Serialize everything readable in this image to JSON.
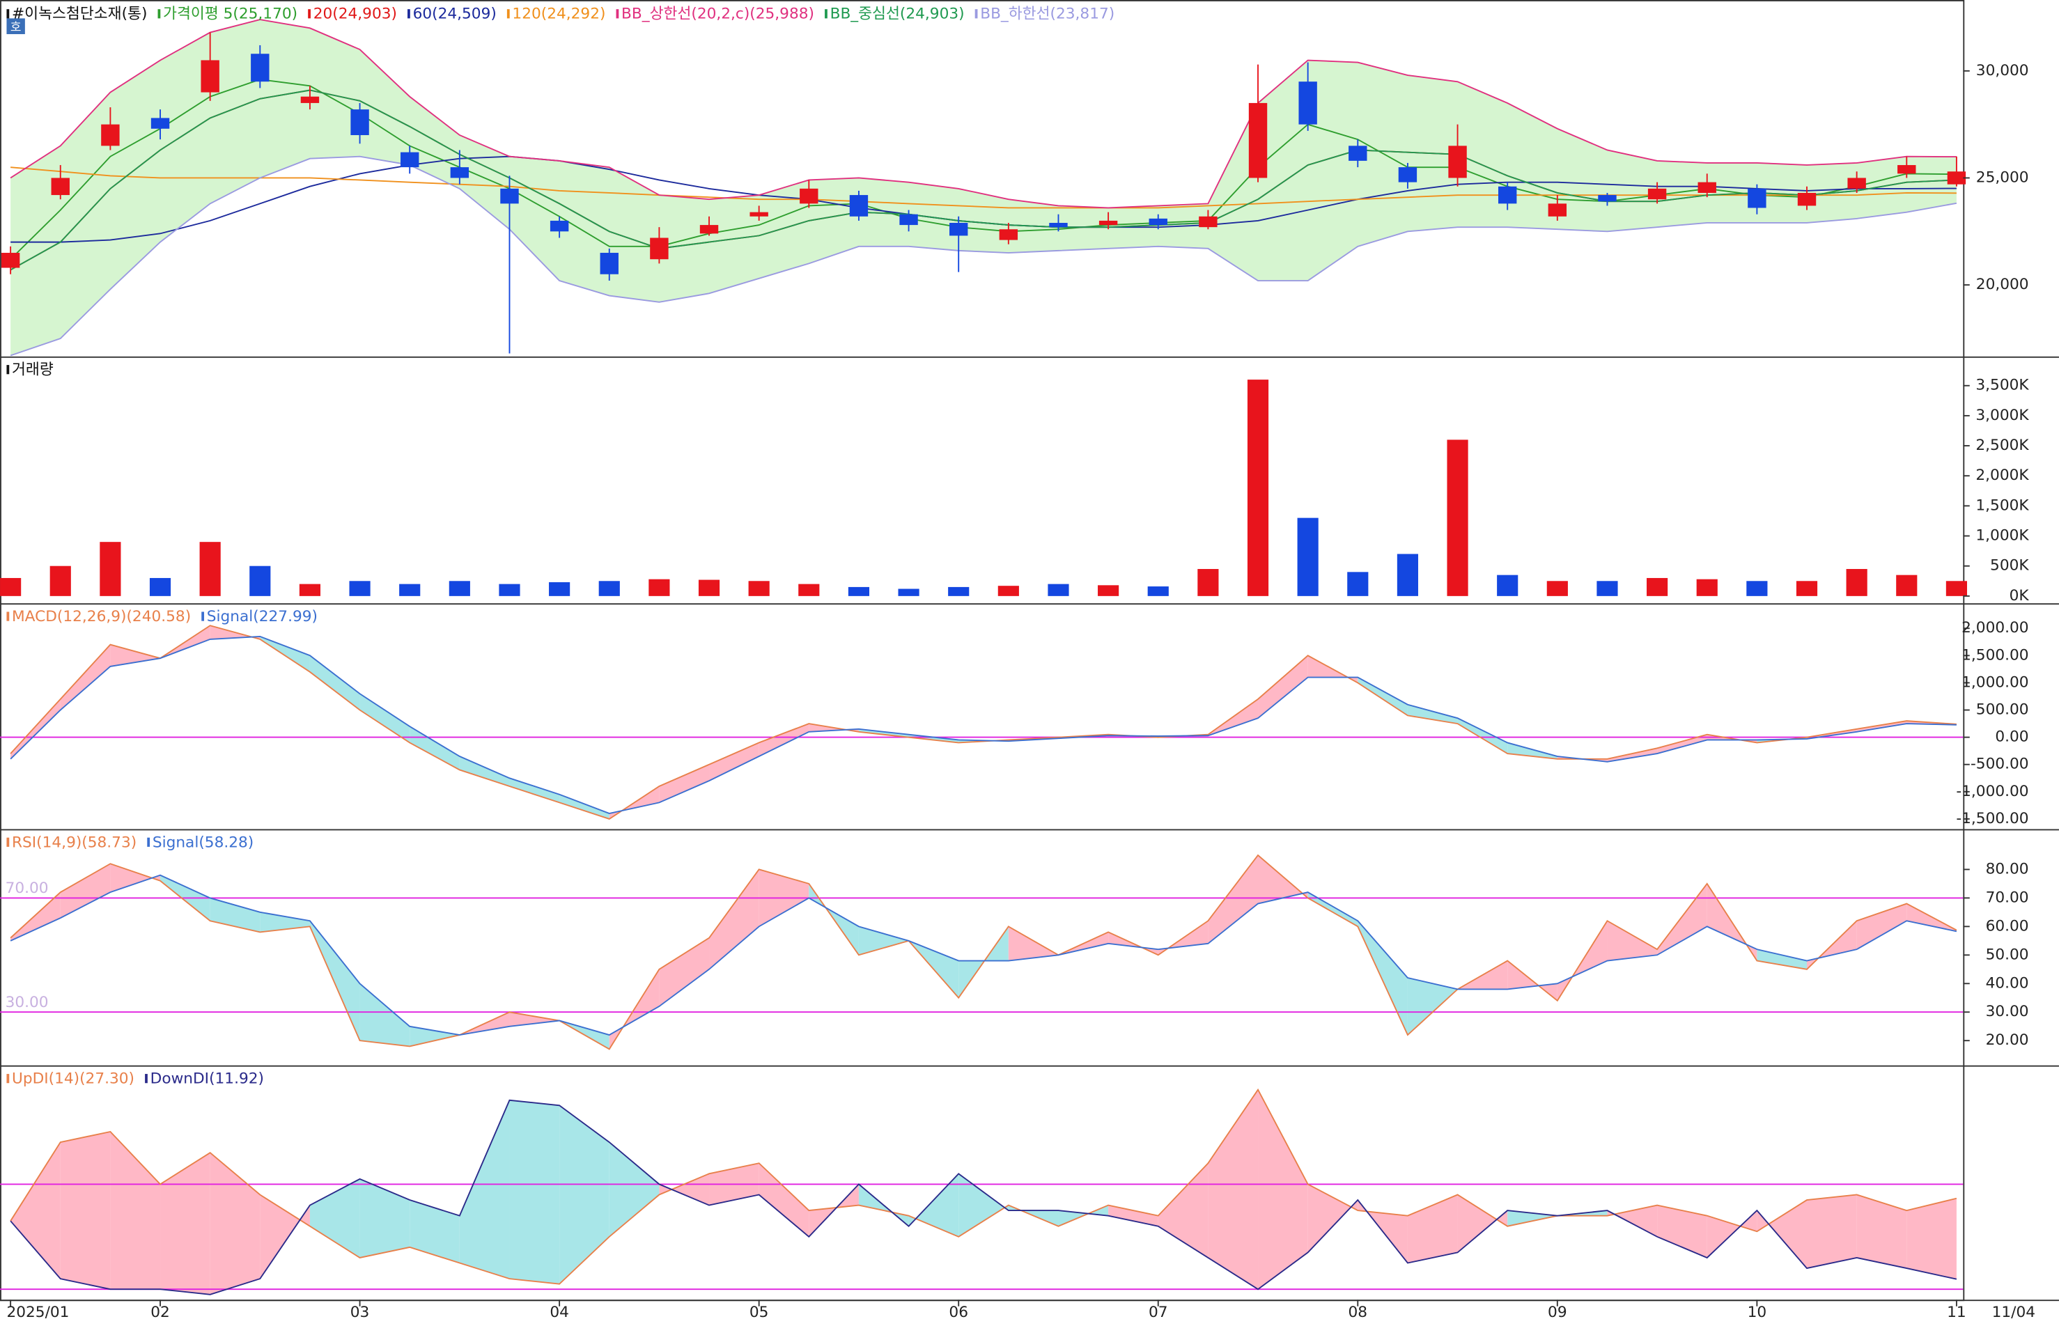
{
  "chart_data": [
    {
      "type": "candlestick",
      "title": "#이녹스첨단소재(통)",
      "badge": "호",
      "last_date": "11/04",
      "categories": [
        "2025/01",
        null,
        null,
        "02",
        null,
        null,
        null,
        "03",
        null,
        null,
        null,
        "04",
        null,
        null,
        null,
        "05",
        null,
        null,
        null,
        "06",
        null,
        null,
        null,
        "07",
        null,
        null,
        null,
        "08",
        null,
        null,
        null,
        "09",
        null,
        null,
        null,
        "10",
        null,
        null,
        null,
        "11"
      ],
      "up_color": "#e8141c",
      "down_color": "#1447e0",
      "open": [
        20800,
        24200,
        26500,
        27800,
        29000,
        30800,
        28500,
        28200,
        26200,
        25500,
        24500,
        23000,
        21500,
        21200,
        22400,
        23200,
        23800,
        24200,
        23300,
        22900,
        22100,
        22900,
        22800,
        23100,
        22700,
        25000,
        29500,
        26500,
        25500,
        25000,
        24600,
        23200,
        24200,
        24000,
        24300,
        24500,
        23700,
        24500,
        25200,
        24700
      ],
      "high": [
        21800,
        25600,
        28300,
        28200,
        31800,
        31200,
        29300,
        28500,
        26500,
        26300,
        25100,
        23200,
        21700,
        22700,
        23200,
        23700,
        24900,
        24400,
        23500,
        23200,
        22900,
        23300,
        23400,
        23300,
        23500,
        30300,
        30400,
        26800,
        25700,
        27500,
        24800,
        24200,
        24300,
        24800,
        25200,
        24700,
        24600,
        25300,
        26000,
        26000
      ],
      "low": [
        20500,
        24000,
        26300,
        26800,
        28600,
        29200,
        28200,
        26600,
        25200,
        24700,
        16800,
        22200,
        20200,
        21000,
        22300,
        23000,
        23600,
        23000,
        22500,
        20600,
        21900,
        22500,
        22600,
        22600,
        22600,
        24800,
        27200,
        25500,
        24500,
        24600,
        23500,
        23000,
        23700,
        23800,
        24100,
        23300,
        23500,
        24300,
        25000,
        24600
      ],
      "close": [
        21500,
        25000,
        27500,
        27300,
        30500,
        29500,
        28800,
        27000,
        25500,
        25000,
        23800,
        22500,
        20500,
        22200,
        22800,
        23400,
        24500,
        23200,
        22800,
        22300,
        22600,
        22700,
        23000,
        22800,
        23200,
        28500,
        27500,
        25800,
        24800,
        26500,
        23800,
        23800,
        23900,
        24500,
        24800,
        23600,
        24300,
        25000,
        25600,
        25300
      ],
      "series": [
        {
          "name": "가격이평 5(25,170)",
          "color": "#2e9e2e",
          "values": [
            21200,
            23500,
            26000,
            27300,
            28800,
            29600,
            29300,
            28000,
            26500,
            25500,
            24500,
            23200,
            21800,
            21800,
            22400,
            22800,
            23700,
            23800,
            23100,
            22700,
            22500,
            22600,
            22800,
            22900,
            23000,
            25500,
            27500,
            26800,
            25500,
            25500,
            24600,
            24000,
            23900,
            24200,
            24500,
            24200,
            24100,
            24600,
            25200,
            25170
          ]
        },
        {
          "name": "20(24,903)",
          "color": "#e01818",
          "values": [
            20700,
            22000,
            24500,
            26300,
            27800,
            28700,
            29100,
            28600,
            27400,
            26100,
            25000,
            23800,
            22500,
            21700,
            22000,
            22300,
            23000,
            23400,
            23300,
            23000,
            22800,
            22700,
            22700,
            22800,
            22900,
            24000,
            25600,
            26300,
            26200,
            26100,
            25100,
            24300,
            23900,
            23900,
            24200,
            24300,
            24200,
            24400,
            24800,
            24903
          ]
        },
        {
          "name": "60(24,509)",
          "color": "#1c2a9c",
          "values": [
            22000,
            22000,
            22100,
            22400,
            23000,
            23800,
            24600,
            25200,
            25600,
            25900,
            26000,
            25800,
            25400,
            24900,
            24500,
            24200,
            24000,
            23600,
            23300,
            23000,
            22800,
            22700,
            22700,
            22700,
            22800,
            23000,
            23500,
            24000,
            24400,
            24700,
            24800,
            24800,
            24700,
            24600,
            24600,
            24500,
            24400,
            24500,
            24500,
            24509
          ]
        },
        {
          "name": "120(24,292)",
          "color": "#f0901c",
          "values": [
            25500,
            25300,
            25100,
            25000,
            25000,
            25000,
            25000,
            24900,
            24800,
            24700,
            24600,
            24400,
            24300,
            24200,
            24100,
            24000,
            24000,
            23900,
            23800,
            23700,
            23600,
            23600,
            23600,
            23600,
            23700,
            23800,
            23900,
            24000,
            24100,
            24200,
            24200,
            24200,
            24200,
            24200,
            24200,
            24200,
            24200,
            24200,
            24300,
            24292
          ]
        },
        {
          "name": "BB_상한선(20,2,c)(25,988)",
          "color": "#e0307f",
          "values": [
            25000,
            26500,
            29000,
            30500,
            31800,
            32400,
            32000,
            31000,
            28800,
            27000,
            26000,
            25800,
            25500,
            24200,
            24000,
            24200,
            24900,
            25000,
            24800,
            24500,
            24000,
            23700,
            23600,
            23700,
            23800,
            28500,
            30500,
            30400,
            29800,
            29500,
            28500,
            27300,
            26300,
            25800,
            25700,
            25700,
            25600,
            25700,
            26000,
            25988
          ]
        },
        {
          "name": "BB_중심선(24,903)",
          "color": "#1f9a50",
          "values": [
            20700,
            22000,
            24500,
            26300,
            27800,
            28700,
            29100,
            28600,
            27400,
            26100,
            25000,
            23800,
            22500,
            21700,
            22000,
            22300,
            23000,
            23400,
            23300,
            23000,
            22800,
            22700,
            22700,
            22800,
            22900,
            24000,
            25600,
            26300,
            26200,
            26100,
            25100,
            24300,
            23900,
            23900,
            24200,
            24300,
            24200,
            24400,
            24800,
            24903
          ]
        },
        {
          "name": "BB_하한선(23,817)",
          "color": "#9a9ae0",
          "values": [
            16700,
            17500,
            19800,
            22000,
            23800,
            25000,
            25900,
            26000,
            25600,
            24500,
            22600,
            20200,
            19500,
            19200,
            19600,
            20300,
            21000,
            21800,
            21800,
            21600,
            21500,
            21600,
            21700,
            21800,
            21700,
            20200,
            20200,
            21800,
            22500,
            22700,
            22700,
            22600,
            22500,
            22700,
            22900,
            22900,
            22900,
            23100,
            23400,
            23817
          ]
        }
      ],
      "band_fill": "#d6f5d0",
      "ylim": [
        16750,
        32700
      ],
      "yticks": [
        {
          "value": 20000,
          "label": "20,000"
        },
        {
          "value": 25000,
          "label": "25,000"
        },
        {
          "value": 30000,
          "label": "30,000"
        }
      ]
    },
    {
      "type": "bar",
      "title": "거래량",
      "values": [
        300000,
        500000,
        900000,
        300000,
        900000,
        500000,
        200000,
        250000,
        200000,
        250000,
        200000,
        230000,
        250000,
        280000,
        270000,
        250000,
        200000,
        150000,
        120000,
        150000,
        170000,
        200000,
        180000,
        160000,
        450000,
        3600000,
        1300000,
        400000,
        700000,
        2600000,
        350000,
        250000,
        250000,
        300000,
        280000,
        250000,
        250000,
        450000,
        350000,
        250000
      ],
      "ylim": [
        0,
        3800000
      ],
      "yticks": [
        {
          "value": 0,
          "label": "0K"
        },
        {
          "value": 500000,
          "label": "500K"
        },
        {
          "value": 1000000,
          "label": "1,000K"
        },
        {
          "value": 1500000,
          "label": "1,500K"
        },
        {
          "value": 2000000,
          "label": "2,000K"
        },
        {
          "value": 2500000,
          "label": "2,500K"
        },
        {
          "value": 3000000,
          "label": "3,000K"
        },
        {
          "value": 3500000,
          "label": "3,500K"
        }
      ]
    },
    {
      "type": "line",
      "fill_up": "#ffb8c6",
      "fill_down": "#a8e6e8",
      "hline_color": "#e020e0",
      "series": [
        {
          "name": "MACD(12,26,9)(240.58)",
          "color": "#e8804a",
          "values": [
            -300,
            700,
            1700,
            1450,
            2050,
            1800,
            1200,
            500,
            -100,
            -600,
            -900,
            -1200,
            -1500,
            -900,
            -500,
            -100,
            250,
            100,
            0,
            -100,
            -50,
            0,
            50,
            0,
            50,
            700,
            1500,
            1000,
            400,
            250,
            -300,
            -400,
            -400,
            -200,
            50,
            -100,
            0,
            150,
            300,
            240.58
          ]
        },
        {
          "name": "Signal(227.99)",
          "color": "#3b6fd0",
          "values": [
            -400,
            500,
            1300,
            1450,
            1800,
            1850,
            1500,
            800,
            200,
            -350,
            -750,
            -1050,
            -1400,
            -1200,
            -800,
            -350,
            100,
            150,
            50,
            -50,
            -70,
            -20,
            30,
            20,
            30,
            350,
            1100,
            1100,
            600,
            350,
            -100,
            -350,
            -450,
            -300,
            -50,
            -50,
            -30,
            100,
            250,
            227.99
          ]
        }
      ],
      "hlines": [
        0
      ],
      "ylim": [
        -1650,
        2400
      ],
      "yticks": [
        {
          "value": 2000,
          "label": "2,000.00"
        },
        {
          "value": 1500,
          "label": "1,500.00"
        },
        {
          "value": 1000,
          "label": "1,000.00"
        },
        {
          "value": 500,
          "label": "500.00"
        },
        {
          "value": 0,
          "label": "0.00"
        },
        {
          "value": -500,
          "label": "-500.00"
        },
        {
          "value": -1000,
          "label": "-1,000.00"
        },
        {
          "value": -1500,
          "label": "-1,500.00"
        }
      ]
    },
    {
      "type": "line",
      "fill_up": "#ffb8c6",
      "fill_down": "#a8e6e8",
      "hline_color": "#e020e0",
      "series": [
        {
          "name": "RSI(14,9)(58.73)",
          "color": "#e8804a",
          "values": [
            56,
            72,
            82,
            76,
            62,
            58,
            60,
            20,
            18,
            22,
            30,
            27,
            17,
            45,
            56,
            80,
            75,
            50,
            55,
            35,
            60,
            50,
            58,
            50,
            62,
            85,
            70,
            60,
            22,
            38,
            48,
            34,
            62,
            52,
            75,
            48,
            45,
            62,
            68,
            58.73
          ]
        },
        {
          "name": "Signal(58.28)",
          "color": "#3b6fd0",
          "values": [
            55,
            63,
            72,
            78,
            70,
            65,
            62,
            40,
            25,
            22,
            25,
            27,
            22,
            32,
            45,
            60,
            70,
            60,
            55,
            48,
            48,
            50,
            54,
            52,
            54,
            68,
            72,
            62,
            42,
            38,
            38,
            40,
            48,
            50,
            60,
            52,
            48,
            52,
            62,
            58.28
          ]
        }
      ],
      "hlines": [
        {
          "value": 70,
          "label": "70.00"
        },
        {
          "value": 30,
          "label": "30.00"
        }
      ],
      "ylim": [
        12,
        93
      ],
      "yticks": [
        {
          "value": 80,
          "label": "80.00"
        },
        {
          "value": 70,
          "label": "70.00"
        },
        {
          "value": 60,
          "label": "60.00"
        },
        {
          "value": 50,
          "label": "50.00"
        },
        {
          "value": 40,
          "label": "40.00"
        },
        {
          "value": 30,
          "label": "30.00"
        },
        {
          "value": 20,
          "label": "20.00"
        }
      ]
    },
    {
      "type": "line",
      "fill_up": "#ffb8c6",
      "fill_down": "#a8e6e8",
      "hline_color": "#e020e0",
      "series": [
        {
          "name": "UpDI(14)(27.30)",
          "color": "#e8804a",
          "values": [
            23,
            38,
            40,
            30,
            36,
            28,
            22,
            16,
            18,
            15,
            12,
            11,
            20,
            28,
            32,
            34,
            25,
            26,
            24,
            20,
            26,
            22,
            26,
            24,
            34,
            48,
            30,
            25,
            24,
            28,
            22,
            24,
            24,
            26,
            24,
            21,
            27,
            28,
            25,
            27.3
          ]
        },
        {
          "name": "DownDI(11.92)",
          "color": "#2a2a8a",
          "values": [
            23,
            12,
            10,
            10,
            9,
            12,
            26,
            31,
            27,
            24,
            46,
            45,
            38,
            30,
            26,
            28,
            20,
            30,
            22,
            32,
            25,
            25,
            24,
            22,
            16,
            10,
            17,
            27,
            15,
            17,
            25,
            24,
            25,
            20,
            16,
            25,
            14,
            16,
            14,
            11.92
          ]
        }
      ],
      "hlines": [
        30,
        10
      ],
      "ylim": [
        8,
        52
      ]
    }
  ]
}
